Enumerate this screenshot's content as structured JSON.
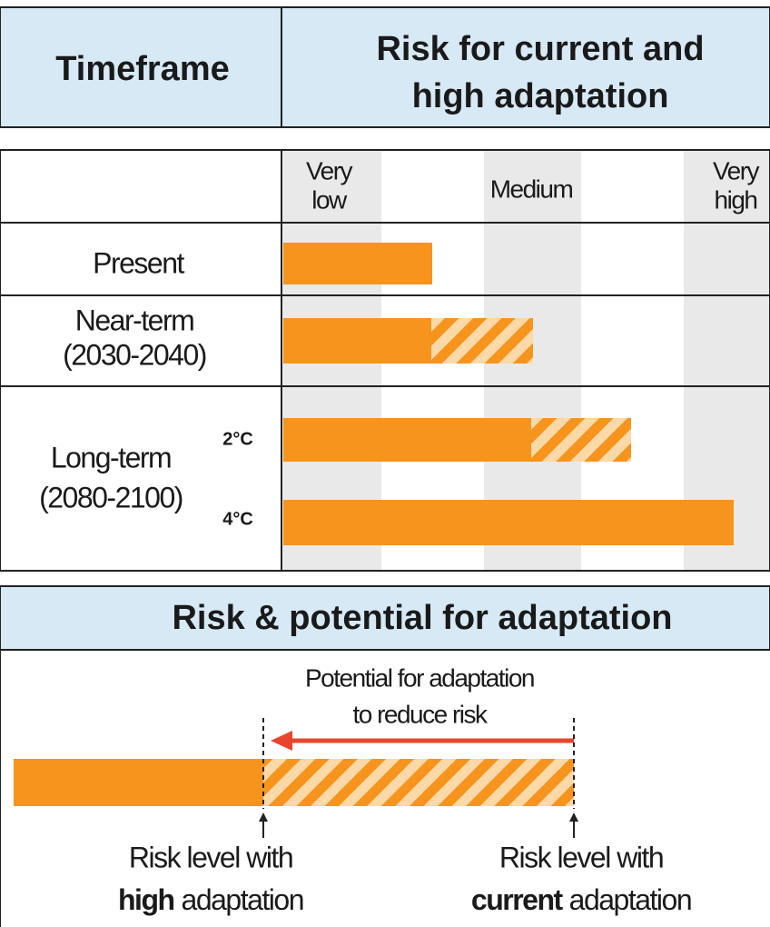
{
  "header": {
    "timeframe": "Timeframe",
    "risk_title": [
      "Risk for current and",
      "high adaptation"
    ]
  },
  "scale": {
    "very_low": [
      "Very",
      "low"
    ],
    "medium": "Medium",
    "very_high": [
      "Very",
      "high"
    ]
  },
  "rows": {
    "present": "Present",
    "near_term": [
      "Near-term",
      "(2030-2040)"
    ],
    "long_term": [
      "Long-term",
      "(2080-2100)"
    ],
    "warming_2": "2°C",
    "warming_4": "4°C"
  },
  "legend": {
    "title": "Risk & potential for adaptation",
    "potential": [
      "Potential for adaptation",
      "to reduce risk"
    ],
    "high_label": {
      "line1": "Risk level with",
      "bold": "high",
      "rest": "adaptation"
    },
    "current_label": {
      "line1": "Risk level with",
      "bold": "current",
      "rest": "adaptation"
    }
  }
}
